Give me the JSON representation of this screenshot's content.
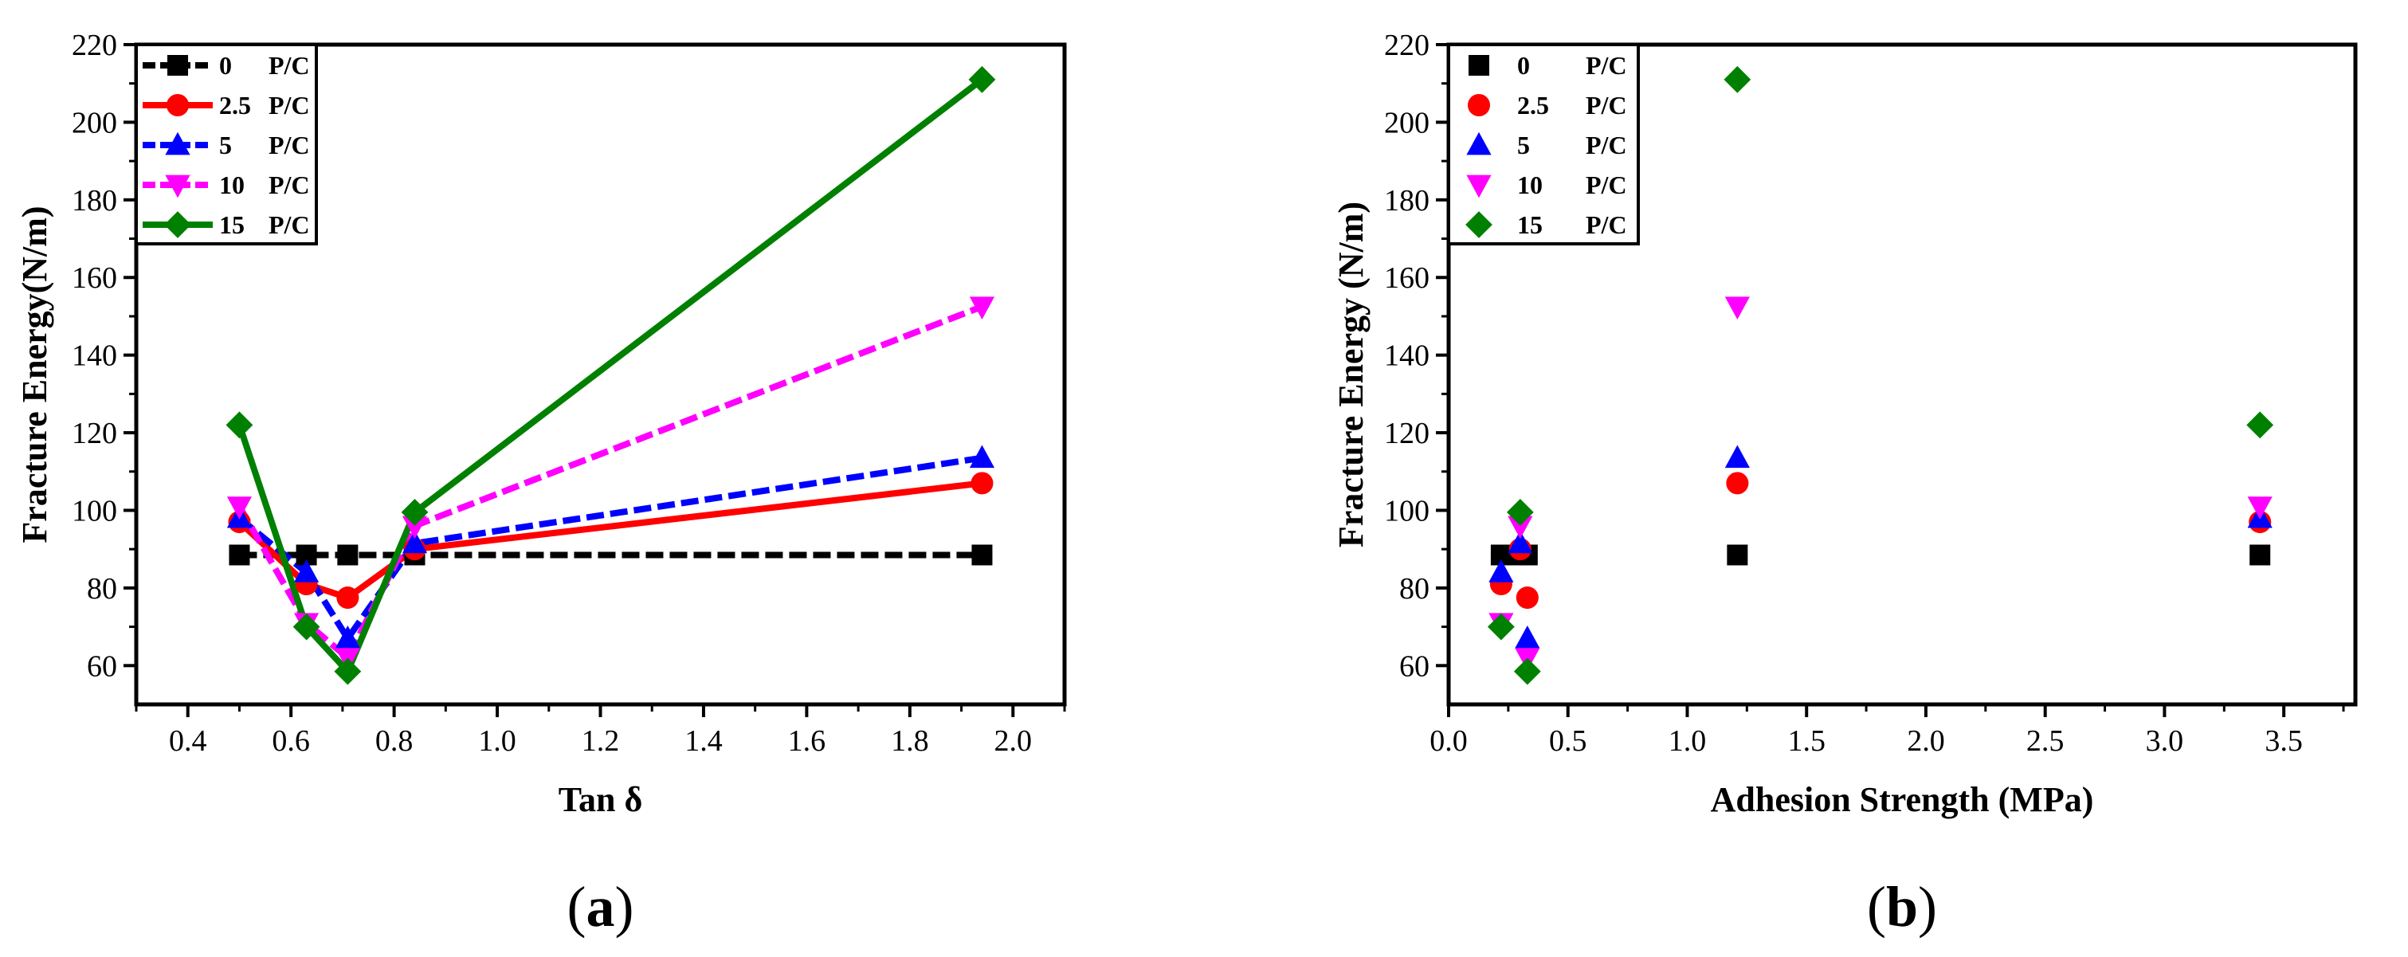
{
  "colors": {
    "0 P/C": "#000000",
    "2.5 P/C": "#ff0000",
    "5 P/C": "#0000ff",
    "10 P/C": "#ff00ff",
    "15 P/C": "#008000"
  },
  "chart_data": [
    {
      "id": "a",
      "panel_label": "a",
      "type": "line",
      "title": "",
      "xlabel": "Tan δ",
      "ylabel": "Fracture Energy(N/m)",
      "xlim": [
        0.3,
        2.1
      ],
      "ylim": [
        50,
        220
      ],
      "xticks": [
        0.4,
        0.6,
        0.8,
        1.0,
        1.2,
        1.4,
        1.6,
        1.8,
        2.0
      ],
      "xtick_labels": [
        "0.4",
        "0.6",
        "0.8",
        "1.0",
        "1.2",
        "1.4",
        "1.6",
        "1.8",
        "2.0"
      ],
      "yticks": [
        60,
        80,
        100,
        120,
        140,
        160,
        180,
        200,
        220
      ],
      "ytick_labels": [
        "60",
        "80",
        "100",
        "120",
        "140",
        "160",
        "180",
        "200",
        "220"
      ],
      "legend_position": "top-left",
      "series": [
        {
          "name": "0 P/C",
          "legend_num": "0",
          "legend_unit": "P/C",
          "marker": "square",
          "dashed": true,
          "x": [
            0.5,
            0.63,
            0.71,
            0.84,
            1.94
          ],
          "y": [
            88.5,
            88.5,
            88.5,
            88.5,
            88.5
          ]
        },
        {
          "name": "2.5 P/C",
          "legend_num": "2.5",
          "legend_unit": "P/C",
          "marker": "circle",
          "dashed": false,
          "x": [
            0.5,
            0.63,
            0.71,
            0.84,
            1.94
          ],
          "y": [
            97.0,
            81.0,
            77.5,
            90.0,
            107.0
          ]
        },
        {
          "name": "5 P/C",
          "legend_num": "5",
          "legend_unit": "P/C",
          "marker": "triangle-up",
          "dashed": true,
          "x": [
            0.5,
            0.63,
            0.71,
            0.84,
            1.94
          ],
          "y": [
            98.0,
            84.0,
            67.0,
            91.5,
            113.5
          ]
        },
        {
          "name": "10 P/C",
          "legend_num": "10",
          "legend_unit": "P/C",
          "marker": "triangle-down",
          "dashed": true,
          "x": [
            0.5,
            0.63,
            0.71,
            0.84,
            1.94
          ],
          "y": [
            101.0,
            71.0,
            62.0,
            96.0,
            152.5
          ]
        },
        {
          "name": "15 P/C",
          "legend_num": "15",
          "legend_unit": "P/C",
          "marker": "diamond",
          "dashed": false,
          "x": [
            0.5,
            0.63,
            0.71,
            0.84,
            1.94
          ],
          "y": [
            122.0,
            70.0,
            58.5,
            99.5,
            211.0
          ]
        }
      ]
    },
    {
      "id": "b",
      "panel_label": "b",
      "type": "scatter",
      "title": "",
      "xlabel": "Adhesion Strength (MPa)",
      "ylabel": "Fracture Energy (N/m)",
      "xlim": [
        0.0,
        3.8
      ],
      "ylim": [
        50,
        220
      ],
      "xticks": [
        0.0,
        0.5,
        1.0,
        1.5,
        2.0,
        2.5,
        3.0,
        3.5
      ],
      "xtick_labels": [
        "0.0",
        "0.5",
        "1.0",
        "1.5",
        "2.0",
        "2.5",
        "3.0",
        "3.5"
      ],
      "yticks": [
        60,
        80,
        100,
        120,
        140,
        160,
        180,
        200,
        220
      ],
      "ytick_labels": [
        "60",
        "80",
        "100",
        "120",
        "140",
        "160",
        "180",
        "200",
        "220"
      ],
      "legend_position": "top-left",
      "series": [
        {
          "name": "0 P/C",
          "legend_num": "0",
          "legend_unit": "P/C",
          "marker": "square",
          "x": [
            0.22,
            0.3,
            0.33,
            1.21,
            3.4
          ],
          "y": [
            88.5,
            88.5,
            88.5,
            88.5,
            88.5
          ]
        },
        {
          "name": "2.5 P/C",
          "legend_num": "2.5",
          "legend_unit": "P/C",
          "marker": "circle",
          "x": [
            0.22,
            0.3,
            0.33,
            1.21,
            3.4
          ],
          "y": [
            81.0,
            90.0,
            77.5,
            107.0,
            97.0
          ]
        },
        {
          "name": "5 P/C",
          "legend_num": "5",
          "legend_unit": "P/C",
          "marker": "triangle-up",
          "x": [
            0.22,
            0.3,
            0.33,
            1.21,
            3.4
          ],
          "y": [
            84.0,
            91.5,
            67.0,
            113.5,
            98.0
          ]
        },
        {
          "name": "10 P/C",
          "legend_num": "10",
          "legend_unit": "P/C",
          "marker": "triangle-down",
          "x": [
            0.22,
            0.3,
            0.33,
            1.21,
            3.4
          ],
          "y": [
            71.0,
            96.0,
            62.0,
            152.5,
            101.0
          ]
        },
        {
          "name": "15 P/C",
          "legend_num": "15",
          "legend_unit": "P/C",
          "marker": "diamond",
          "x": [
            0.22,
            0.3,
            0.33,
            1.21,
            3.4
          ],
          "y": [
            70.0,
            99.5,
            58.5,
            211.0,
            122.0
          ]
        }
      ]
    }
  ]
}
